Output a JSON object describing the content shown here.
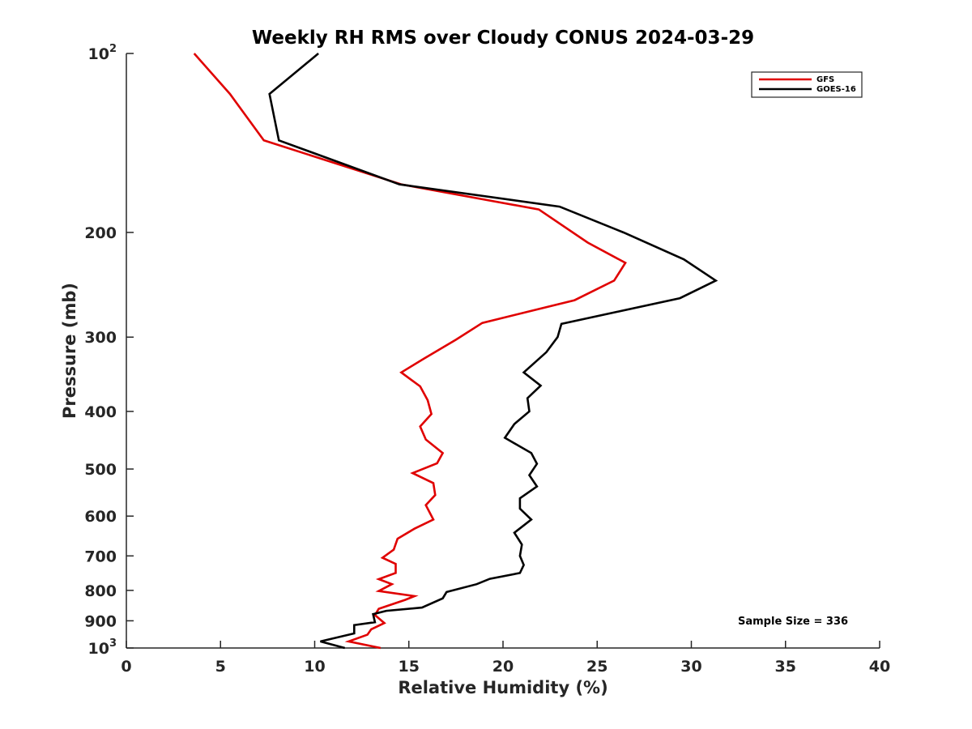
{
  "chart_data": {
    "type": "line",
    "title": "Weekly RH RMS over Cloudy CONUS 2024-03-29",
    "xlabel": "Relative Humidity (%)",
    "ylabel": "Pressure (mb)",
    "xlim": [
      0,
      40
    ],
    "ylim": [
      100,
      1000
    ],
    "y_scale": "log",
    "y_reversed": true,
    "grid": false,
    "legend_position": "top-right",
    "annotation": "Sample Size = 336",
    "xticks": [
      {
        "value": 0,
        "label": "0"
      },
      {
        "value": 5,
        "label": "5"
      },
      {
        "value": 10,
        "label": "10"
      },
      {
        "value": 15,
        "label": "15"
      },
      {
        "value": 20,
        "label": "20"
      },
      {
        "value": 25,
        "label": "25"
      },
      {
        "value": 30,
        "label": "30"
      },
      {
        "value": 35,
        "label": "35"
      },
      {
        "value": 40,
        "label": "40"
      }
    ],
    "yticks": [
      {
        "value": 100,
        "label": "10",
        "exp": "2"
      },
      {
        "value": 200,
        "label": "200"
      },
      {
        "value": 300,
        "label": "300"
      },
      {
        "value": 400,
        "label": "400"
      },
      {
        "value": 500,
        "label": "500"
      },
      {
        "value": 600,
        "label": "600"
      },
      {
        "value": 700,
        "label": "700"
      },
      {
        "value": 800,
        "label": "800"
      },
      {
        "value": 900,
        "label": "900"
      },
      {
        "value": 1000,
        "label": "10",
        "exp": "3"
      }
    ],
    "series": [
      {
        "name": "GFS",
        "color": "#e00000",
        "points": [
          [
            3.6,
            100
          ],
          [
            5.5,
            117
          ],
          [
            7.3,
            140
          ],
          [
            14.6,
            166
          ],
          [
            21.9,
            183
          ],
          [
            24.5,
            208
          ],
          [
            26.5,
            225
          ],
          [
            25.9,
            241
          ],
          [
            23.8,
            260
          ],
          [
            18.9,
            284
          ],
          [
            17.5,
            303
          ],
          [
            15.8,
            326
          ],
          [
            14.6,
            344
          ],
          [
            15.6,
            363
          ],
          [
            16.0,
            383
          ],
          [
            16.2,
            404
          ],
          [
            15.6,
            424
          ],
          [
            15.9,
            446
          ],
          [
            16.8,
            470
          ],
          [
            16.5,
            489
          ],
          [
            15.2,
            508
          ],
          [
            16.3,
            528
          ],
          [
            16.4,
            553
          ],
          [
            15.9,
            575
          ],
          [
            16.3,
            608
          ],
          [
            15.3,
            630
          ],
          [
            14.4,
            655
          ],
          [
            14.2,
            683
          ],
          [
            13.6,
            705
          ],
          [
            14.3,
            722
          ],
          [
            14.3,
            748
          ],
          [
            13.4,
            766
          ],
          [
            14.1,
            781
          ],
          [
            13.4,
            802
          ],
          [
            15.3,
            818
          ],
          [
            14.8,
            830
          ],
          [
            13.4,
            859
          ],
          [
            13.2,
            880
          ],
          [
            13.7,
            908
          ],
          [
            13.0,
            930
          ],
          [
            12.8,
            950
          ],
          [
            11.8,
            975
          ],
          [
            13.5,
            1000
          ]
        ]
      },
      {
        "name": "GOES-16",
        "color": "#000000",
        "points": [
          [
            10.2,
            100
          ],
          [
            7.6,
            117
          ],
          [
            8.1,
            140
          ],
          [
            14.5,
            166
          ],
          [
            23.0,
            181
          ],
          [
            26.4,
            200
          ],
          [
            29.6,
            222
          ],
          [
            31.3,
            241
          ],
          [
            29.4,
            258
          ],
          [
            23.1,
            285
          ],
          [
            22.9,
            300
          ],
          [
            22.3,
            318
          ],
          [
            21.1,
            344
          ],
          [
            22.0,
            362
          ],
          [
            21.3,
            380
          ],
          [
            21.4,
            400
          ],
          [
            20.6,
            420
          ],
          [
            20.1,
            443
          ],
          [
            21.5,
            470
          ],
          [
            21.8,
            490
          ],
          [
            21.4,
            512
          ],
          [
            21.8,
            535
          ],
          [
            20.9,
            560
          ],
          [
            20.9,
            583
          ],
          [
            21.5,
            608
          ],
          [
            20.6,
            640
          ],
          [
            21.0,
            670
          ],
          [
            20.9,
            700
          ],
          [
            21.1,
            725
          ],
          [
            20.9,
            748
          ],
          [
            19.3,
            765
          ],
          [
            18.6,
            781
          ],
          [
            17.0,
            805
          ],
          [
            16.8,
            825
          ],
          [
            15.7,
            855
          ],
          [
            13.8,
            866
          ],
          [
            13.1,
            877
          ],
          [
            13.2,
            905
          ],
          [
            12.1,
            915
          ],
          [
            12.1,
            945
          ],
          [
            10.3,
            975
          ],
          [
            11.6,
            1000
          ]
        ]
      }
    ]
  }
}
